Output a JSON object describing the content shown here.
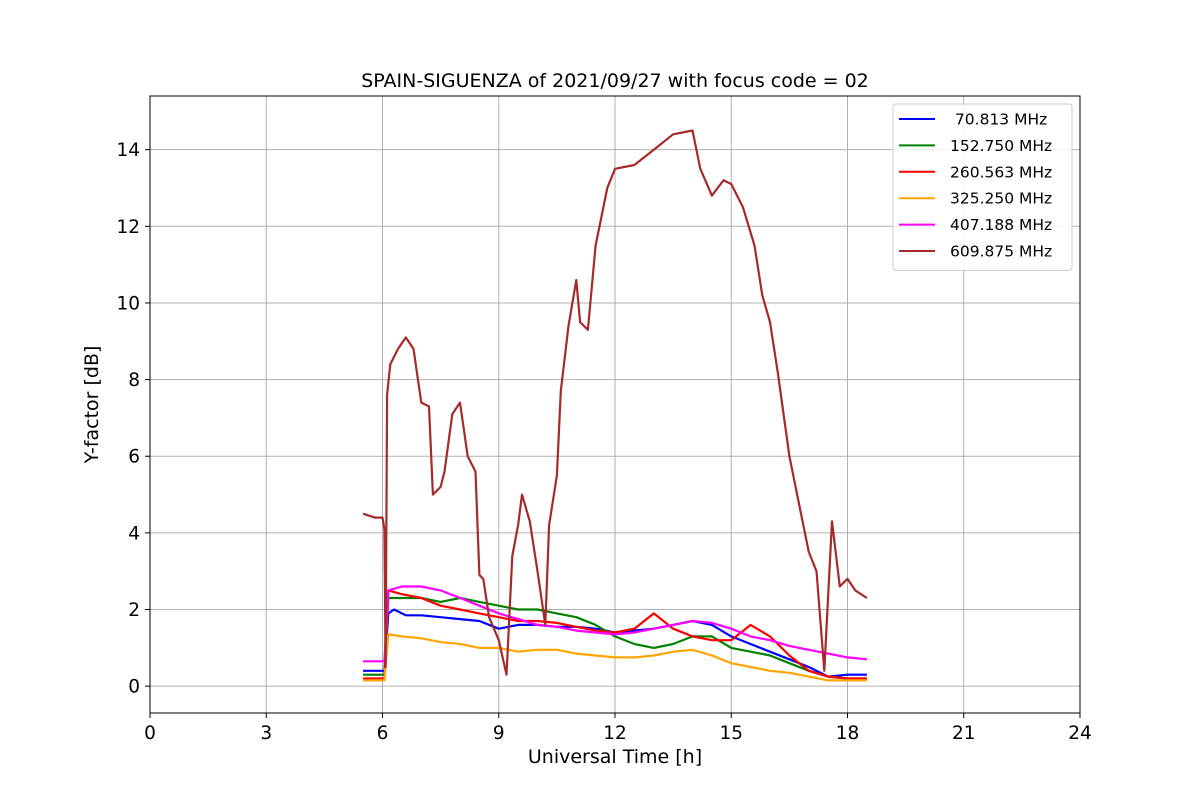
{
  "chart_data": {
    "type": "line",
    "title": "SPAIN-SIGUENZA of 2021/09/27 with focus code = 02",
    "xlabel": "Universal Time [h]",
    "ylabel": "Y-factor [dB]",
    "xlim": [
      0,
      24
    ],
    "ylim": [
      -0.7,
      15.4
    ],
    "xticks": [
      0,
      3,
      6,
      9,
      12,
      15,
      18,
      21,
      24
    ],
    "yticks": [
      0,
      2,
      4,
      6,
      8,
      10,
      12,
      14
    ],
    "grid": true,
    "legend_position": "top-right",
    "series": [
      {
        "name": " 70.813 MHz",
        "color": "#0000ff",
        "x": [
          5.5,
          6.05,
          6.15,
          6.3,
          6.6,
          7.0,
          7.5,
          8.0,
          8.5,
          9.0,
          9.5,
          10.0,
          10.5,
          11.0,
          11.5,
          12.0,
          12.5,
          13.0,
          13.5,
          14.0,
          14.5,
          15.0,
          15.5,
          16.0,
          16.5,
          17.0,
          17.5,
          18.0,
          18.5
        ],
        "y": [
          0.4,
          0.4,
          1.9,
          2.0,
          1.85,
          1.85,
          1.8,
          1.75,
          1.7,
          1.5,
          1.6,
          1.6,
          1.55,
          1.55,
          1.5,
          1.4,
          1.45,
          1.5,
          1.6,
          1.7,
          1.6,
          1.3,
          1.1,
          0.9,
          0.7,
          0.5,
          0.25,
          0.3,
          0.3
        ]
      },
      {
        "name": "152.750 MHz",
        "color": "#008000",
        "x": [
          5.5,
          6.05,
          6.15,
          6.5,
          7.0,
          7.5,
          8.0,
          8.5,
          9.0,
          9.5,
          10.0,
          10.5,
          11.0,
          11.5,
          12.0,
          12.5,
          13.0,
          13.5,
          14.0,
          14.5,
          15.0,
          15.5,
          16.0,
          16.5,
          17.0,
          17.5,
          18.0,
          18.5
        ],
        "y": [
          0.3,
          0.3,
          2.3,
          2.3,
          2.3,
          2.2,
          2.3,
          2.2,
          2.1,
          2.0,
          2.0,
          1.9,
          1.8,
          1.6,
          1.3,
          1.1,
          1.0,
          1.1,
          1.3,
          1.3,
          1.0,
          0.9,
          0.8,
          0.6,
          0.4,
          0.25,
          0.2,
          0.2
        ]
      },
      {
        "name": "260.563 MHz",
        "color": "#ff0000",
        "x": [
          5.5,
          6.05,
          6.15,
          6.5,
          7.0,
          7.5,
          8.0,
          8.5,
          9.0,
          9.5,
          10.0,
          10.5,
          11.0,
          11.5,
          12.0,
          12.5,
          13.0,
          13.5,
          14.0,
          14.5,
          15.0,
          15.5,
          16.0,
          16.5,
          17.0,
          17.5,
          18.0,
          18.5
        ],
        "y": [
          0.2,
          0.2,
          2.5,
          2.4,
          2.3,
          2.1,
          2.0,
          1.9,
          1.8,
          1.7,
          1.7,
          1.65,
          1.55,
          1.45,
          1.4,
          1.5,
          1.9,
          1.5,
          1.3,
          1.2,
          1.2,
          1.6,
          1.3,
          0.8,
          0.4,
          0.25,
          0.2,
          0.2
        ]
      },
      {
        "name": "325.250 MHz",
        "color": "#ffa500",
        "x": [
          5.5,
          6.05,
          6.15,
          6.5,
          7.0,
          7.5,
          8.0,
          8.5,
          9.0,
          9.5,
          10.0,
          10.5,
          11.0,
          11.5,
          12.0,
          12.5,
          13.0,
          13.5,
          14.0,
          14.5,
          15.0,
          15.5,
          16.0,
          16.5,
          17.0,
          17.5,
          18.0,
          18.5
        ],
        "y": [
          0.15,
          0.15,
          1.35,
          1.3,
          1.25,
          1.15,
          1.1,
          1.0,
          1.0,
          0.9,
          0.95,
          0.95,
          0.85,
          0.8,
          0.75,
          0.75,
          0.8,
          0.9,
          0.95,
          0.8,
          0.6,
          0.5,
          0.4,
          0.35,
          0.25,
          0.15,
          0.15,
          0.15
        ]
      },
      {
        "name": "407.188 MHz",
        "color": "#ff00ff",
        "x": [
          5.5,
          6.05,
          6.15,
          6.5,
          7.0,
          7.5,
          8.0,
          8.5,
          9.0,
          9.5,
          10.0,
          10.5,
          11.0,
          11.5,
          12.0,
          12.5,
          13.0,
          13.5,
          14.0,
          14.5,
          15.0,
          15.5,
          16.0,
          16.5,
          17.0,
          17.5,
          18.0,
          18.5
        ],
        "y": [
          0.65,
          0.65,
          2.5,
          2.6,
          2.6,
          2.5,
          2.3,
          2.1,
          1.9,
          1.75,
          1.6,
          1.55,
          1.45,
          1.4,
          1.35,
          1.4,
          1.5,
          1.6,
          1.7,
          1.65,
          1.5,
          1.3,
          1.2,
          1.05,
          0.95,
          0.85,
          0.75,
          0.7
        ]
      },
      {
        "name": "609.875 MHz",
        "color": "#a52a2a",
        "x": [
          5.5,
          5.8,
          6.0,
          6.05,
          6.08,
          6.12,
          6.2,
          6.4,
          6.6,
          6.8,
          7.0,
          7.2,
          7.3,
          7.5,
          7.6,
          7.8,
          8.0,
          8.2,
          8.4,
          8.5,
          8.6,
          8.75,
          9.0,
          9.2,
          9.35,
          9.5,
          9.6,
          9.8,
          10.0,
          10.2,
          10.3,
          10.5,
          10.6,
          10.8,
          11.0,
          11.1,
          11.3,
          11.5,
          11.8,
          12.0,
          12.5,
          13.0,
          13.5,
          14.0,
          14.2,
          14.5,
          14.8,
          15.0,
          15.3,
          15.6,
          15.8,
          16.0,
          16.2,
          16.5,
          16.8,
          17.0,
          17.2,
          17.4,
          17.6,
          17.8,
          18.0,
          18.2,
          18.5
        ],
        "y": [
          4.5,
          4.4,
          4.4,
          4.1,
          0.5,
          7.6,
          8.4,
          8.8,
          9.1,
          8.8,
          7.4,
          7.3,
          5.0,
          5.2,
          5.6,
          7.1,
          7.4,
          6.0,
          5.6,
          2.9,
          2.8,
          1.8,
          1.2,
          0.3,
          3.4,
          4.2,
          5.0,
          4.3,
          3.0,
          1.6,
          4.2,
          5.5,
          7.7,
          9.4,
          10.6,
          9.5,
          9.3,
          11.5,
          13.0,
          13.5,
          13.6,
          14.0,
          14.4,
          14.5,
          13.5,
          12.8,
          13.2,
          13.1,
          12.5,
          11.5,
          10.2,
          9.5,
          8.2,
          6.0,
          4.5,
          3.5,
          3.0,
          0.4,
          4.3,
          2.6,
          2.8,
          2.5,
          2.3
        ]
      }
    ]
  }
}
